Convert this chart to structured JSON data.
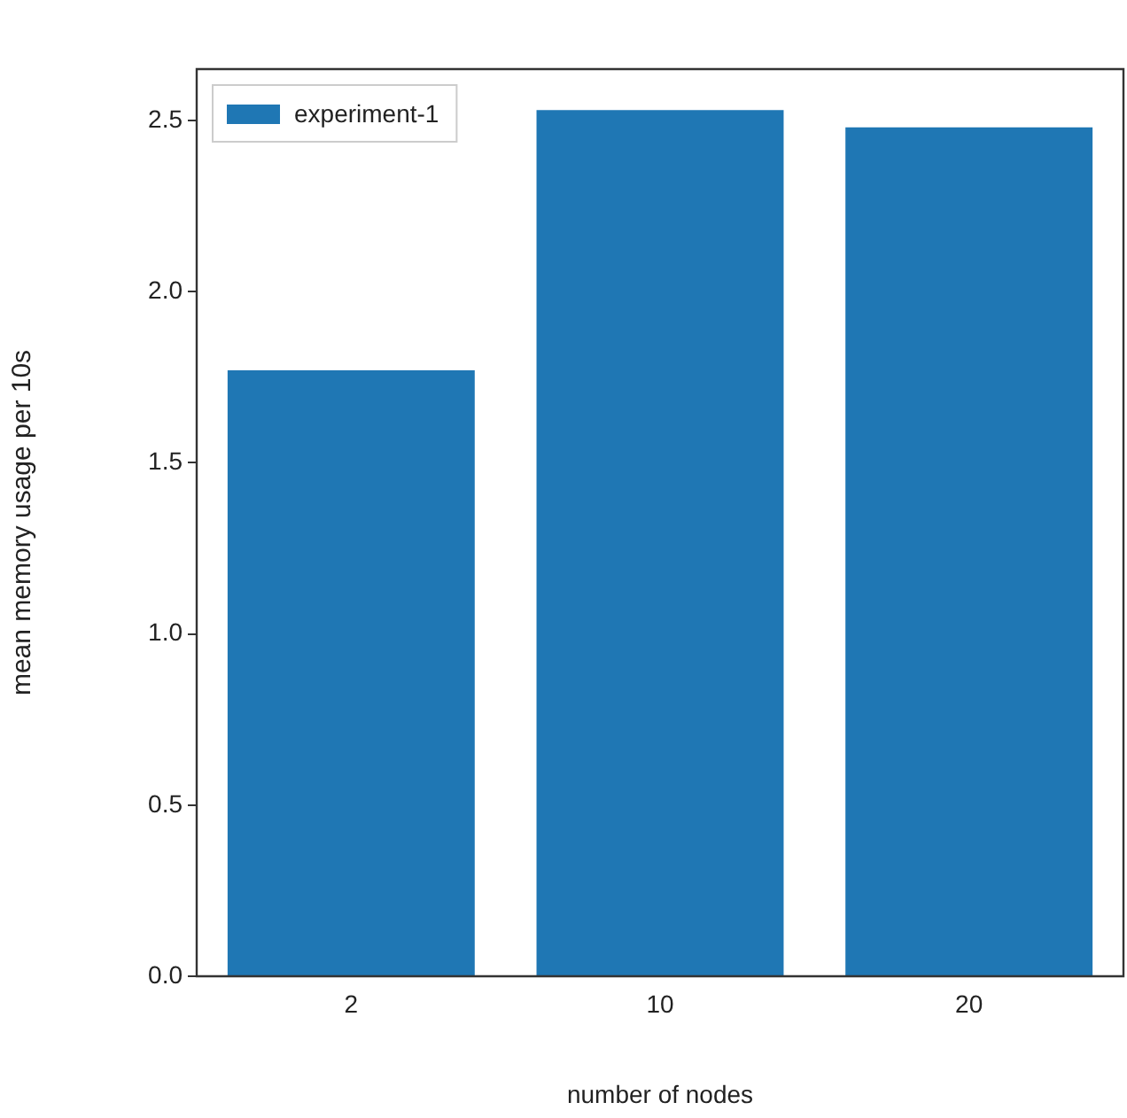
{
  "chart_data": {
    "type": "bar",
    "categories": [
      "2",
      "10",
      "20"
    ],
    "series": [
      {
        "name": "experiment-1",
        "color": "#1f77b4",
        "values": [
          1.77,
          2.53,
          2.48
        ]
      }
    ],
    "xlabel": "number of nodes",
    "ylabel": "mean memory usage per 10s",
    "ylim": [
      0,
      2.65
    ],
    "yticks": [
      {
        "value": 0,
        "label": "0.0"
      },
      {
        "value": 0.5,
        "label": "0.5"
      },
      {
        "value": 1,
        "label": "1.0"
      },
      {
        "value": 1.5,
        "label": "1.5"
      },
      {
        "value": 2,
        "label": "2.0"
      },
      {
        "value": 2.5,
        "label": "2.5"
      }
    ],
    "grid": false,
    "legend": "top left"
  }
}
